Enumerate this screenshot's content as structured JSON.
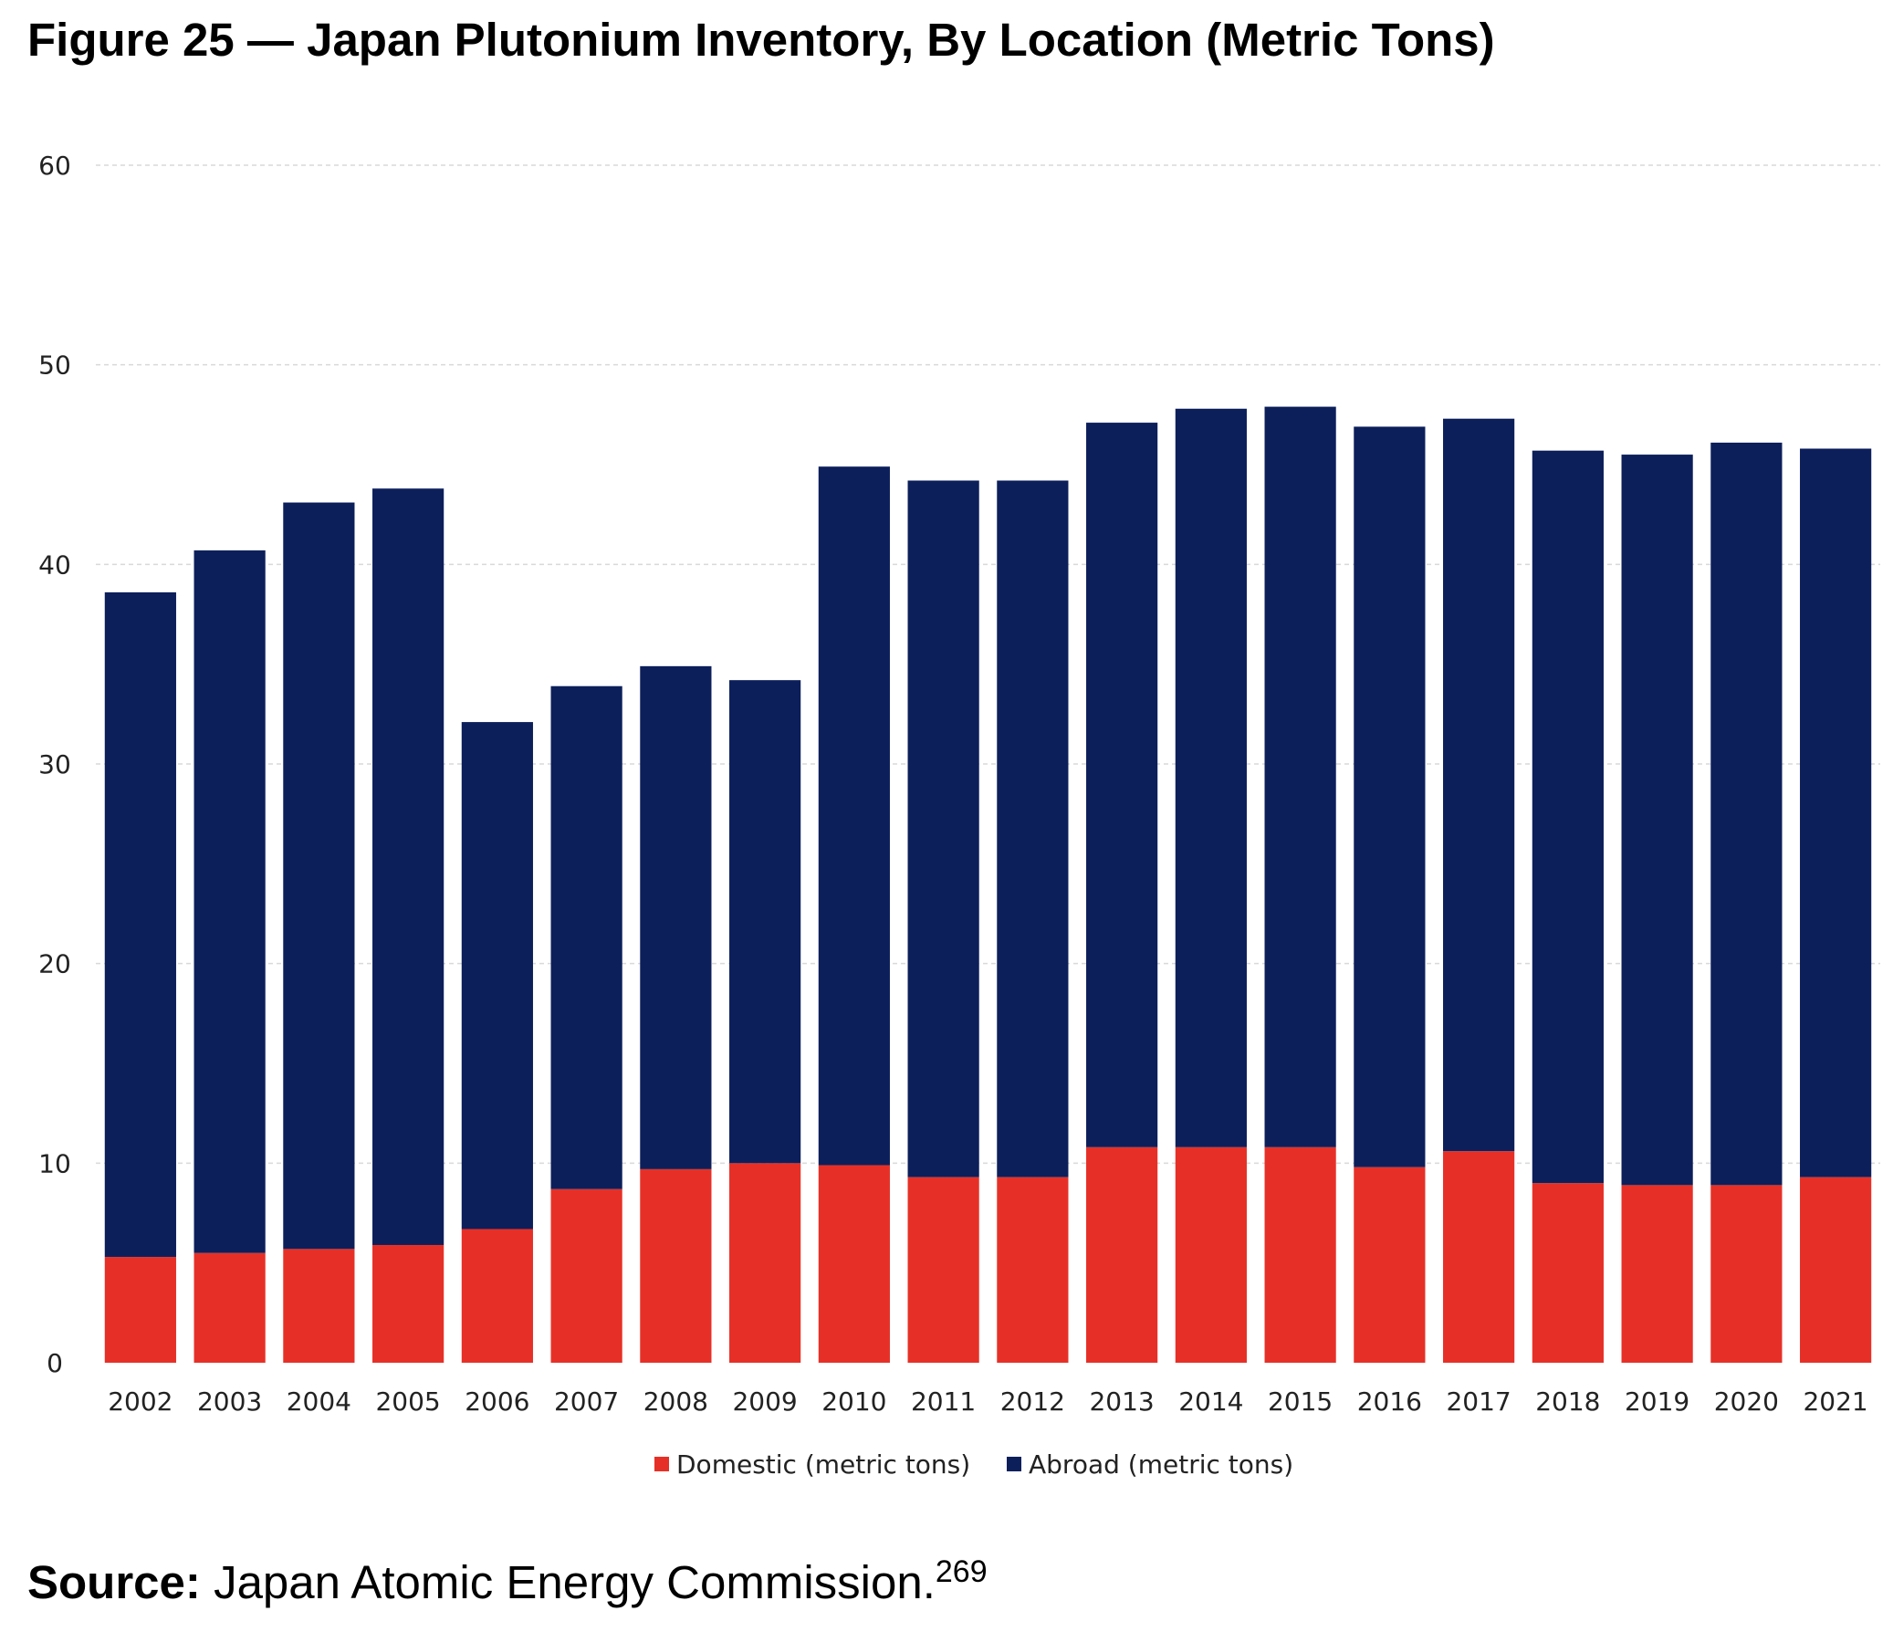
{
  "title": "Figure 25 — Japan Plutonium Inventory, By Location (Metric Tons)",
  "source": {
    "label": "Source:",
    "text": "Japan Atomic Energy Commission.",
    "footnote": "269"
  },
  "colors": {
    "domestic": "#e63027",
    "abroad": "#0c1f5b",
    "grid": "#d9d9d9"
  },
  "chart_data": {
    "type": "bar",
    "stacked": true,
    "title": "Figure 25 — Japan Plutonium Inventory, By Location (Metric Tons)",
    "xlabel": "",
    "ylabel": "",
    "ylim": [
      0,
      60
    ],
    "yticks": [
      0,
      10,
      20,
      30,
      40,
      50,
      60
    ],
    "grid": true,
    "legend_position": "bottom",
    "categories": [
      "2002",
      "2003",
      "2004",
      "2005",
      "2006",
      "2007",
      "2008",
      "2009",
      "2010",
      "2011",
      "2012",
      "2013",
      "2014",
      "2015",
      "2016",
      "2017",
      "2018",
      "2019",
      "2020",
      "2021"
    ],
    "series": [
      {
        "name": "Domestic (metric tons)",
        "color": "#e63027",
        "values": [
          5.3,
          5.5,
          5.7,
          5.9,
          6.7,
          8.7,
          9.7,
          10.0,
          9.9,
          9.3,
          9.3,
          10.8,
          10.8,
          10.8,
          9.8,
          10.6,
          9.0,
          8.9,
          8.9,
          9.3
        ]
      },
      {
        "name": "Abroad (metric tons)",
        "color": "#0c1f5b",
        "values": [
          33.3,
          35.2,
          37.4,
          37.9,
          25.4,
          25.2,
          25.2,
          24.2,
          35.0,
          34.9,
          34.9,
          36.3,
          37.0,
          37.1,
          37.1,
          36.7,
          36.7,
          36.6,
          37.2,
          36.5
        ]
      }
    ]
  }
}
